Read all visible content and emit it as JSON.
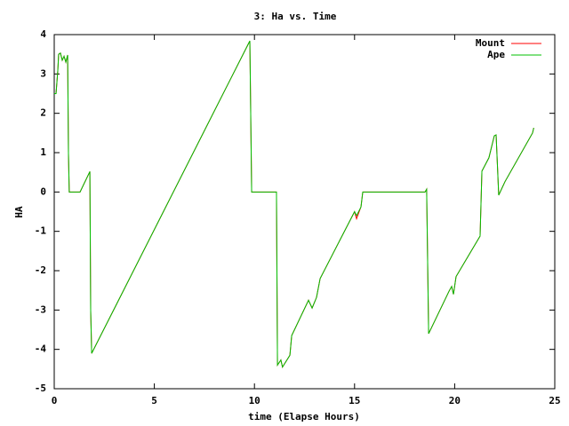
{
  "chart_data": {
    "type": "line",
    "title": "3: Ha vs. Time",
    "x_label": "time (Elapse Hours)",
    "y_label": "HA",
    "xlim": [
      0,
      25
    ],
    "ylim": [
      -5,
      4
    ],
    "xticks": [
      0,
      5,
      10,
      15,
      20,
      25
    ],
    "yticks": [
      -5,
      -4,
      -3,
      -2,
      -1,
      0,
      1,
      2,
      3,
      4
    ],
    "grid": false,
    "legend": "top-right",
    "x": [
      0,
      0.09,
      0.18,
      0.22,
      0.31,
      0.4,
      0.49,
      0.58,
      0.67,
      0.71,
      0.75,
      1.29,
      1.78,
      1.82,
      1.87,
      9.77,
      9.86,
      11.1,
      11.15,
      11.32,
      11.4,
      11.77,
      11.86,
      12.7,
      12.88,
      13.1,
      13.28,
      15.0,
      15.1,
      15.23,
      15.32,
      15.41,
      18.52,
      18.6,
      18.7,
      19.72,
      19.85,
      19.94,
      20.07,
      21.27,
      21.36,
      21.71,
      21.98,
      22.07,
      22.2,
      22.51,
      23.89,
      23.95
    ],
    "series": [
      {
        "name": "Mount",
        "color": "#ff0000",
        "values": [
          2.5,
          2.5,
          3.1,
          3.5,
          3.53,
          3.35,
          3.45,
          3.3,
          3.48,
          1.0,
          0,
          0,
          0.52,
          -3.0,
          -4.1,
          3.84,
          0,
          0,
          -4.4,
          -4.27,
          -4.45,
          -4.15,
          -3.65,
          -2.75,
          -2.95,
          -2.68,
          -2.2,
          -0.5,
          -0.68,
          -0.5,
          -0.38,
          0,
          0,
          0.07,
          -3.6,
          -2.52,
          -2.4,
          -2.6,
          -2.15,
          -1.12,
          0.53,
          0.87,
          1.43,
          1.45,
          -0.08,
          0.26,
          1.5,
          1.63
        ]
      },
      {
        "name": "Ape",
        "color": "#00c000",
        "values": [
          2.5,
          2.5,
          3.1,
          3.5,
          3.53,
          3.35,
          3.45,
          3.3,
          3.48,
          1.0,
          0,
          0,
          0.52,
          -3.0,
          -4.1,
          3.84,
          0,
          0,
          -4.4,
          -4.27,
          -4.45,
          -4.15,
          -3.65,
          -2.75,
          -2.95,
          -2.68,
          -2.2,
          -0.5,
          -0.6,
          -0.47,
          -0.38,
          0,
          0,
          0.07,
          -3.6,
          -2.52,
          -2.4,
          -2.6,
          -2.15,
          -1.12,
          0.53,
          0.87,
          1.43,
          1.45,
          -0.08,
          0.26,
          1.5,
          1.63
        ]
      }
    ]
  }
}
